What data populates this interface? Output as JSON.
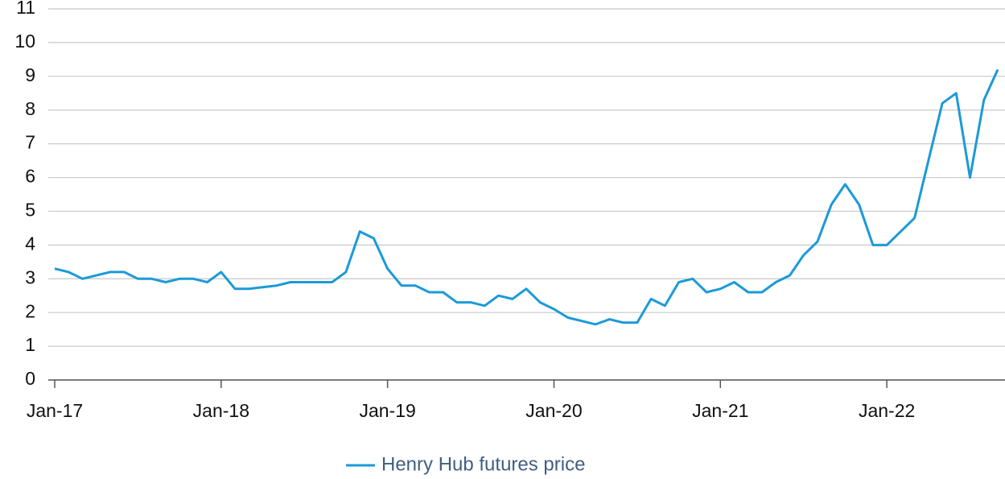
{
  "chart_data": {
    "type": "line",
    "x": [
      "2017-01",
      "2017-02",
      "2017-03",
      "2017-04",
      "2017-05",
      "2017-06",
      "2017-07",
      "2017-08",
      "2017-09",
      "2017-10",
      "2017-11",
      "2017-12",
      "2018-01",
      "2018-02",
      "2018-03",
      "2018-04",
      "2018-05",
      "2018-06",
      "2018-07",
      "2018-08",
      "2018-09",
      "2018-10",
      "2018-11",
      "2018-12",
      "2019-01",
      "2019-02",
      "2019-03",
      "2019-04",
      "2019-05",
      "2019-06",
      "2019-07",
      "2019-08",
      "2019-09",
      "2019-10",
      "2019-11",
      "2019-12",
      "2020-01",
      "2020-02",
      "2020-03",
      "2020-04",
      "2020-05",
      "2020-06",
      "2020-07",
      "2020-08",
      "2020-09",
      "2020-10",
      "2020-11",
      "2020-12",
      "2021-01",
      "2021-02",
      "2021-03",
      "2021-04",
      "2021-05",
      "2021-06",
      "2021-07",
      "2021-08",
      "2021-09",
      "2021-10",
      "2021-11",
      "2021-12",
      "2022-01",
      "2022-02",
      "2022-03",
      "2022-04",
      "2022-05",
      "2022-06",
      "2022-07",
      "2022-08",
      "2022-09"
    ],
    "series": [
      {
        "name": "Henry Hub futures price",
        "color": "#1b9ad8",
        "values": [
          3.3,
          3.2,
          3.0,
          3.1,
          3.2,
          3.2,
          3.0,
          3.0,
          2.9,
          3.0,
          3.0,
          2.9,
          3.2,
          2.7,
          2.7,
          2.75,
          2.8,
          2.9,
          2.9,
          2.9,
          2.9,
          3.2,
          4.4,
          4.2,
          3.3,
          2.8,
          2.8,
          2.6,
          2.6,
          2.3,
          2.3,
          2.2,
          2.5,
          2.4,
          2.7,
          2.3,
          2.1,
          1.85,
          1.75,
          1.65,
          1.8,
          1.7,
          1.7,
          2.4,
          2.2,
          2.9,
          3.0,
          2.6,
          2.7,
          2.9,
          2.6,
          2.6,
          2.9,
          3.1,
          3.7,
          4.1,
          5.2,
          5.8,
          5.2,
          4.0,
          4.0,
          4.4,
          4.8,
          6.5,
          8.2,
          8.5,
          6.0,
          8.3,
          9.2
        ]
      }
    ],
    "xlim": [
      "2017-01",
      "2022-09"
    ],
    "xticks": [
      {
        "value": "2017-01",
        "label": "Jan-17"
      },
      {
        "value": "2018-01",
        "label": "Jan-18"
      },
      {
        "value": "2019-01",
        "label": "Jan-19"
      },
      {
        "value": "2020-01",
        "label": "Jan-20"
      },
      {
        "value": "2021-01",
        "label": "Jan-21"
      },
      {
        "value": "2022-01",
        "label": "Jan-22"
      }
    ],
    "ylim": [
      0,
      11
    ],
    "yticks": [
      0,
      1,
      2,
      3,
      4,
      5,
      6,
      7,
      8,
      9,
      10,
      11
    ],
    "grid": true,
    "legend": "bottom"
  }
}
